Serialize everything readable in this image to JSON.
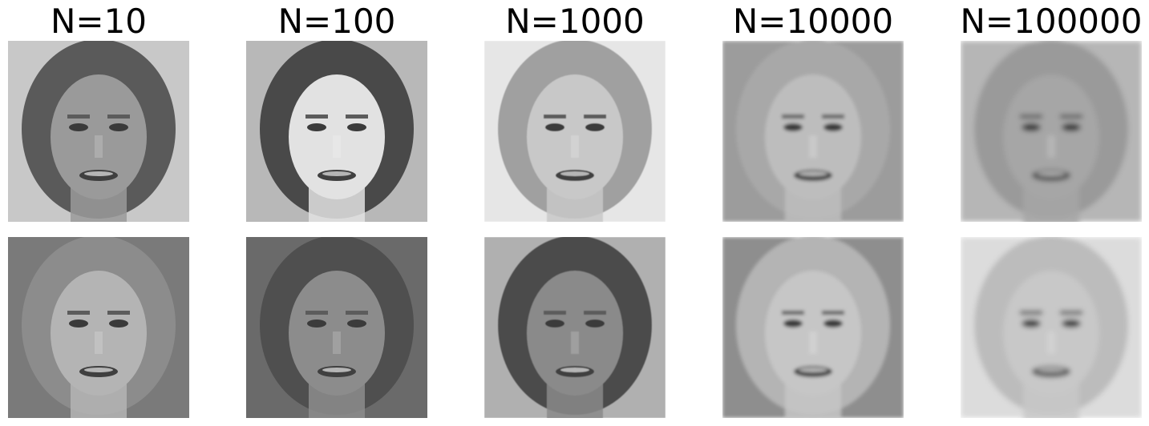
{
  "columns": [
    {
      "title": "N=10",
      "samples": [
        {
          "name": "face-sample-n10-1",
          "tone": "#9a9a9a",
          "bg": "#c8c8c8",
          "hair": "#5a5a5a"
        },
        {
          "name": "face-sample-n10-2",
          "tone": "#b4b4b4",
          "bg": "#7a7a7a",
          "hair": "#8c8c8c"
        }
      ]
    },
    {
      "title": "N=100",
      "samples": [
        {
          "name": "face-sample-n100-1",
          "tone": "#e2e2e2",
          "bg": "#b8b8b8",
          "hair": "#4a4a4a"
        },
        {
          "name": "face-sample-n100-2",
          "tone": "#8c8c8c",
          "bg": "#6a6a6a",
          "hair": "#4f4f4f"
        }
      ]
    },
    {
      "title": "N=1000",
      "samples": [
        {
          "name": "face-sample-n1000-1",
          "tone": "#c8c8c8",
          "bg": "#e6e6e6",
          "hair": "#a0a0a0"
        },
        {
          "name": "face-sample-n1000-2",
          "tone": "#8a8a8a",
          "bg": "#b0b0b0",
          "hair": "#4c4c4c"
        }
      ]
    },
    {
      "title": "N=10000",
      "samples": [
        {
          "name": "face-sample-n10000-1",
          "tone": "#bdbdbd",
          "bg": "#9c9c9c",
          "hair": "#a8a8a8"
        },
        {
          "name": "face-sample-n10000-2",
          "tone": "#c6c6c6",
          "bg": "#8e8e8e",
          "hair": "#b4b4b4"
        }
      ]
    },
    {
      "title": "N=100000",
      "samples": [
        {
          "name": "face-sample-n100000-1",
          "tone": "#a6a6a6",
          "bg": "#b6b6b6",
          "hair": "#9a9a9a"
        },
        {
          "name": "face-sample-n100000-2",
          "tone": "#c8c8c8",
          "bg": "#dcdcdc",
          "hair": "#bcbcbc"
        }
      ]
    }
  ]
}
